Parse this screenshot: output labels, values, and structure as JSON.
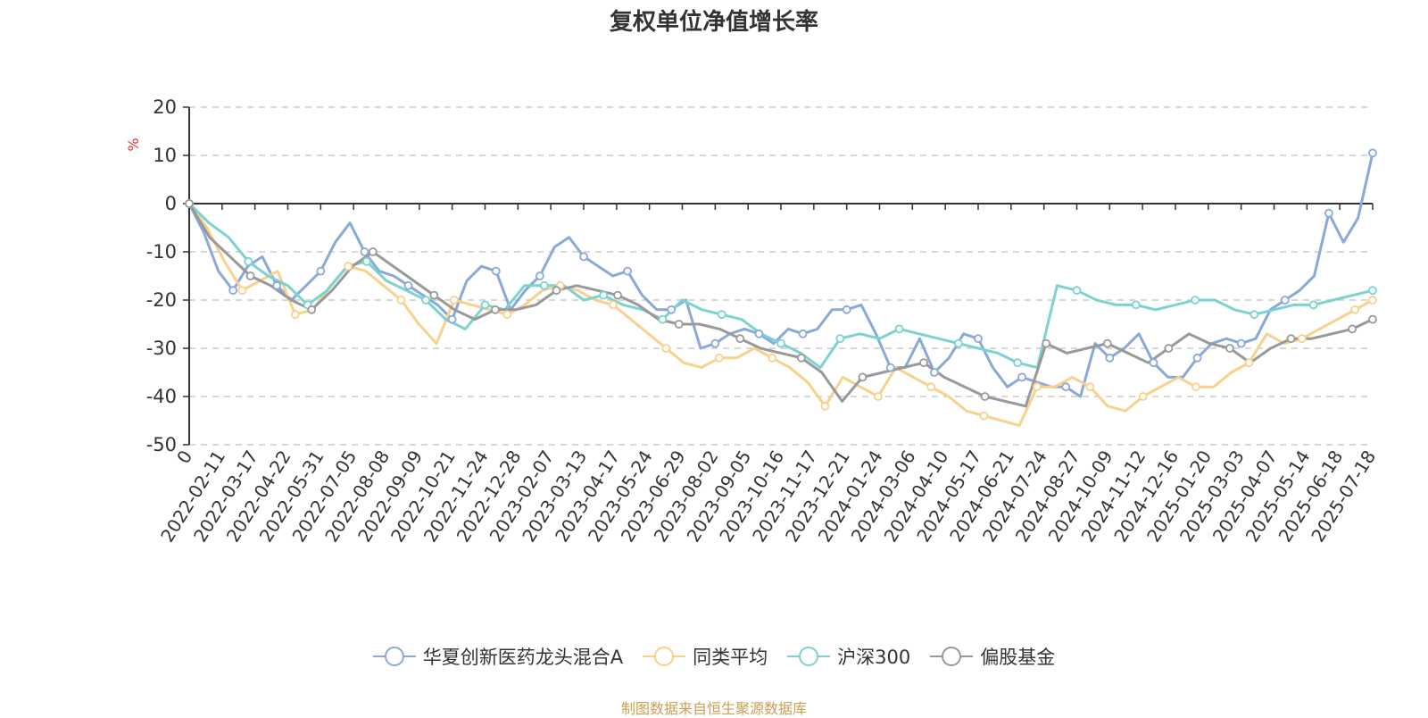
{
  "chart_data": {
    "type": "line",
    "title": "复权单位净值增长率",
    "ylabel": "%",
    "ylim": [
      -50,
      20
    ],
    "yticks": [
      20,
      10,
      0,
      -10,
      -20,
      -30,
      -40,
      -50
    ],
    "grid": true,
    "legend_position": "bottom",
    "xtick_labels": [
      "0",
      "2022-02-11",
      "2022-03-17",
      "2022-04-22",
      "2022-05-31",
      "2022-07-05",
      "2022-08-08",
      "2022-09-09",
      "2022-10-21",
      "2022-11-24",
      "2022-12-28",
      "2023-02-07",
      "2023-03-13",
      "2023-04-17",
      "2023-05-24",
      "2023-06-29",
      "2023-08-02",
      "2023-09-05",
      "2023-10-16",
      "2023-11-17",
      "2023-12-21",
      "2024-01-24",
      "2024-03-06",
      "2024-04-10",
      "2024-05-17",
      "2024-06-21",
      "2024-07-24",
      "2024-08-27",
      "2024-10-09",
      "2024-11-12",
      "2024-12-16",
      "2025-01-20",
      "2025-03-03",
      "2025-04-07",
      "2025-05-14",
      "2025-06-18",
      "2025-07-18"
    ],
    "series": [
      {
        "name": "华夏创新医药龙头混合A",
        "color": "#8aa8d8",
        "values": [
          0,
          -6,
          -14,
          -18,
          -13,
          -11,
          -17,
          -20,
          -17,
          -14,
          -8,
          -4,
          -10,
          -14,
          -15,
          -17,
          -19,
          -21,
          -24,
          -16,
          -13,
          -14,
          -22,
          -18,
          -15,
          -9,
          -7,
          -11,
          -13,
          -15,
          -14,
          -19,
          -22,
          -22,
          -20,
          -30,
          -29,
          -27,
          -26,
          -27,
          -29,
          -26,
          -27,
          -26,
          -22,
          -22,
          -21,
          -27,
          -34,
          -34,
          -28,
          -35,
          -32,
          -27,
          -28,
          -34,
          -38,
          -36,
          -37,
          -38,
          -38,
          -40,
          -29,
          -32,
          -30,
          -27,
          -33,
          -36,
          -36,
          -32,
          -29,
          -28,
          -29,
          -28,
          -22,
          -20,
          -18,
          -15,
          -2,
          -8,
          -3,
          10.5
        ]
      },
      {
        "name": "同类平均",
        "color": "#f8d18c",
        "values": [
          0,
          -5,
          -12,
          -18,
          -16,
          -14,
          -23,
          -22,
          -17,
          -13,
          -14,
          -17,
          -20,
          -25,
          -29,
          -20,
          -21,
          -22,
          -23,
          -21,
          -18,
          -17,
          -18,
          -20,
          -21,
          -24,
          -27,
          -30,
          -33,
          -34,
          -32,
          -32,
          -30,
          -32,
          -34,
          -37,
          -42,
          -36,
          -38,
          -40,
          -34,
          -36,
          -38,
          -40,
          -43,
          -44,
          -45,
          -46,
          -38,
          -38,
          -36,
          -38,
          -42,
          -43,
          -40,
          -38,
          -36,
          -38,
          -38,
          -35,
          -33,
          -27,
          -29,
          -28,
          -26,
          -24,
          -22,
          -20
        ]
      },
      {
        "name": "沪深300",
        "color": "#7bd3d0",
        "values": [
          0,
          -4,
          -7,
          -12,
          -15,
          -17,
          -21,
          -18,
          -13,
          -12,
          -16,
          -18,
          -20,
          -24,
          -26,
          -21,
          -22,
          -17,
          -17,
          -17,
          -20,
          -19,
          -21,
          -22,
          -24,
          -20,
          -22,
          -23,
          -24,
          -27,
          -29,
          -31,
          -34,
          -28,
          -27,
          -28,
          -26,
          -27,
          -28,
          -29,
          -30,
          -31,
          -33,
          -34,
          -17,
          -18,
          -20,
          -21,
          -21,
          -22,
          -21,
          -20,
          -20,
          -22,
          -23,
          -22,
          -21,
          -21,
          -20,
          -19,
          -18
        ]
      },
      {
        "name": "偏股基金",
        "color": "#999999",
        "values": [
          0,
          -7,
          -11,
          -15,
          -17,
          -20,
          -22,
          -18,
          -13,
          -10,
          -13,
          -16,
          -19,
          -22,
          -24,
          -22,
          -22,
          -21,
          -18,
          -17,
          -18,
          -19,
          -21,
          -24,
          -25,
          -25,
          -26,
          -28,
          -30,
          -31,
          -32,
          -35,
          -41,
          -36,
          -35,
          -34,
          -33,
          -36,
          -38,
          -40,
          -41,
          -42,
          -29,
          -31,
          -30,
          -29,
          -31,
          -33,
          -30,
          -27,
          -29,
          -30,
          -33,
          -30,
          -28,
          -28,
          -27,
          -26,
          -24
        ]
      }
    ]
  },
  "legend": {
    "items": [
      "华夏创新医药龙头混合A",
      "同类平均",
      "沪深300",
      "偏股基金"
    ]
  },
  "credit": "制图数据来自恒生聚源数据库"
}
